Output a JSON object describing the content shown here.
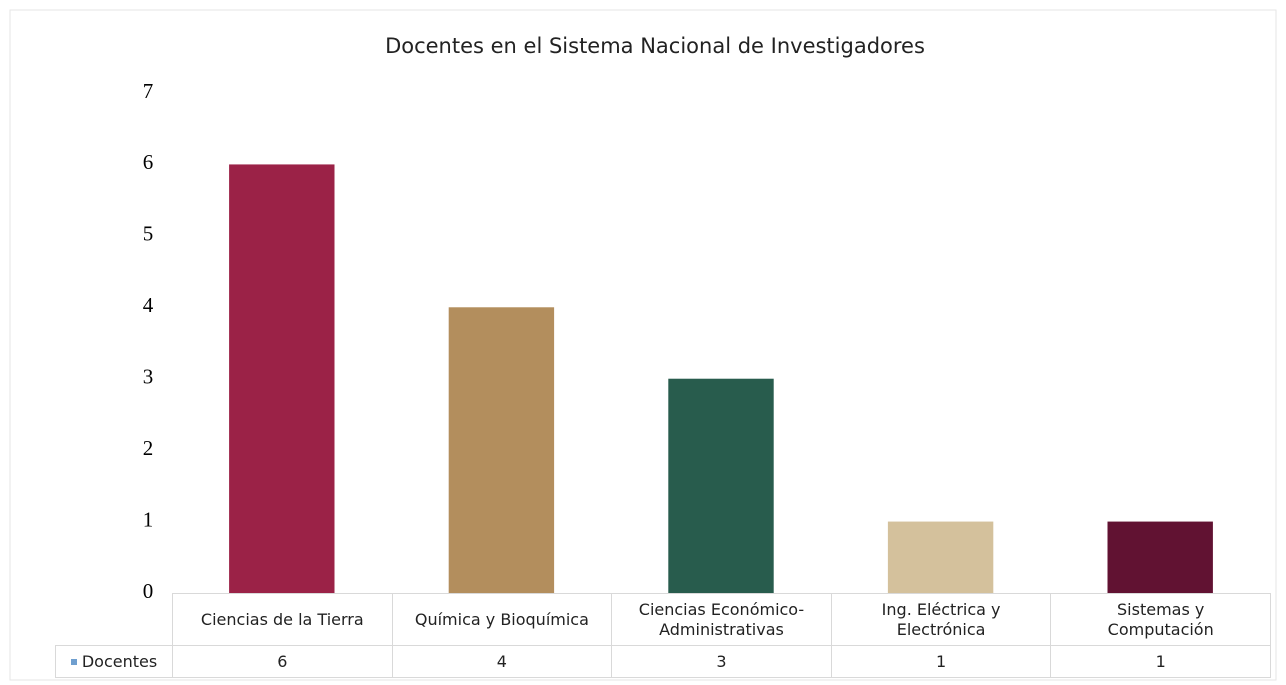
{
  "chart_data": {
    "type": "bar",
    "title": "Docentes en el Sistema Nacional de Investigadores",
    "categories": [
      "Ciencias de la Tierra",
      "Química y Bioquímica",
      "Ciencias Económico-\nAdministrativas",
      "Ing. Eléctrica y\nElectrónica",
      "Sistemas y\nComputación"
    ],
    "series": [
      {
        "name": "Docentes",
        "color": "#6f9fcf",
        "values": [
          6,
          4,
          3,
          1,
          1
        ]
      }
    ],
    "colors": [
      "#9b2247",
      "#b38e5d",
      "#285c4d",
      "#d4c19c",
      "#611232"
    ],
    "ylim": [
      0,
      7
    ],
    "yticks": [
      0,
      1,
      2,
      3,
      4,
      5,
      6,
      7
    ],
    "grid": false,
    "data_table": true
  }
}
